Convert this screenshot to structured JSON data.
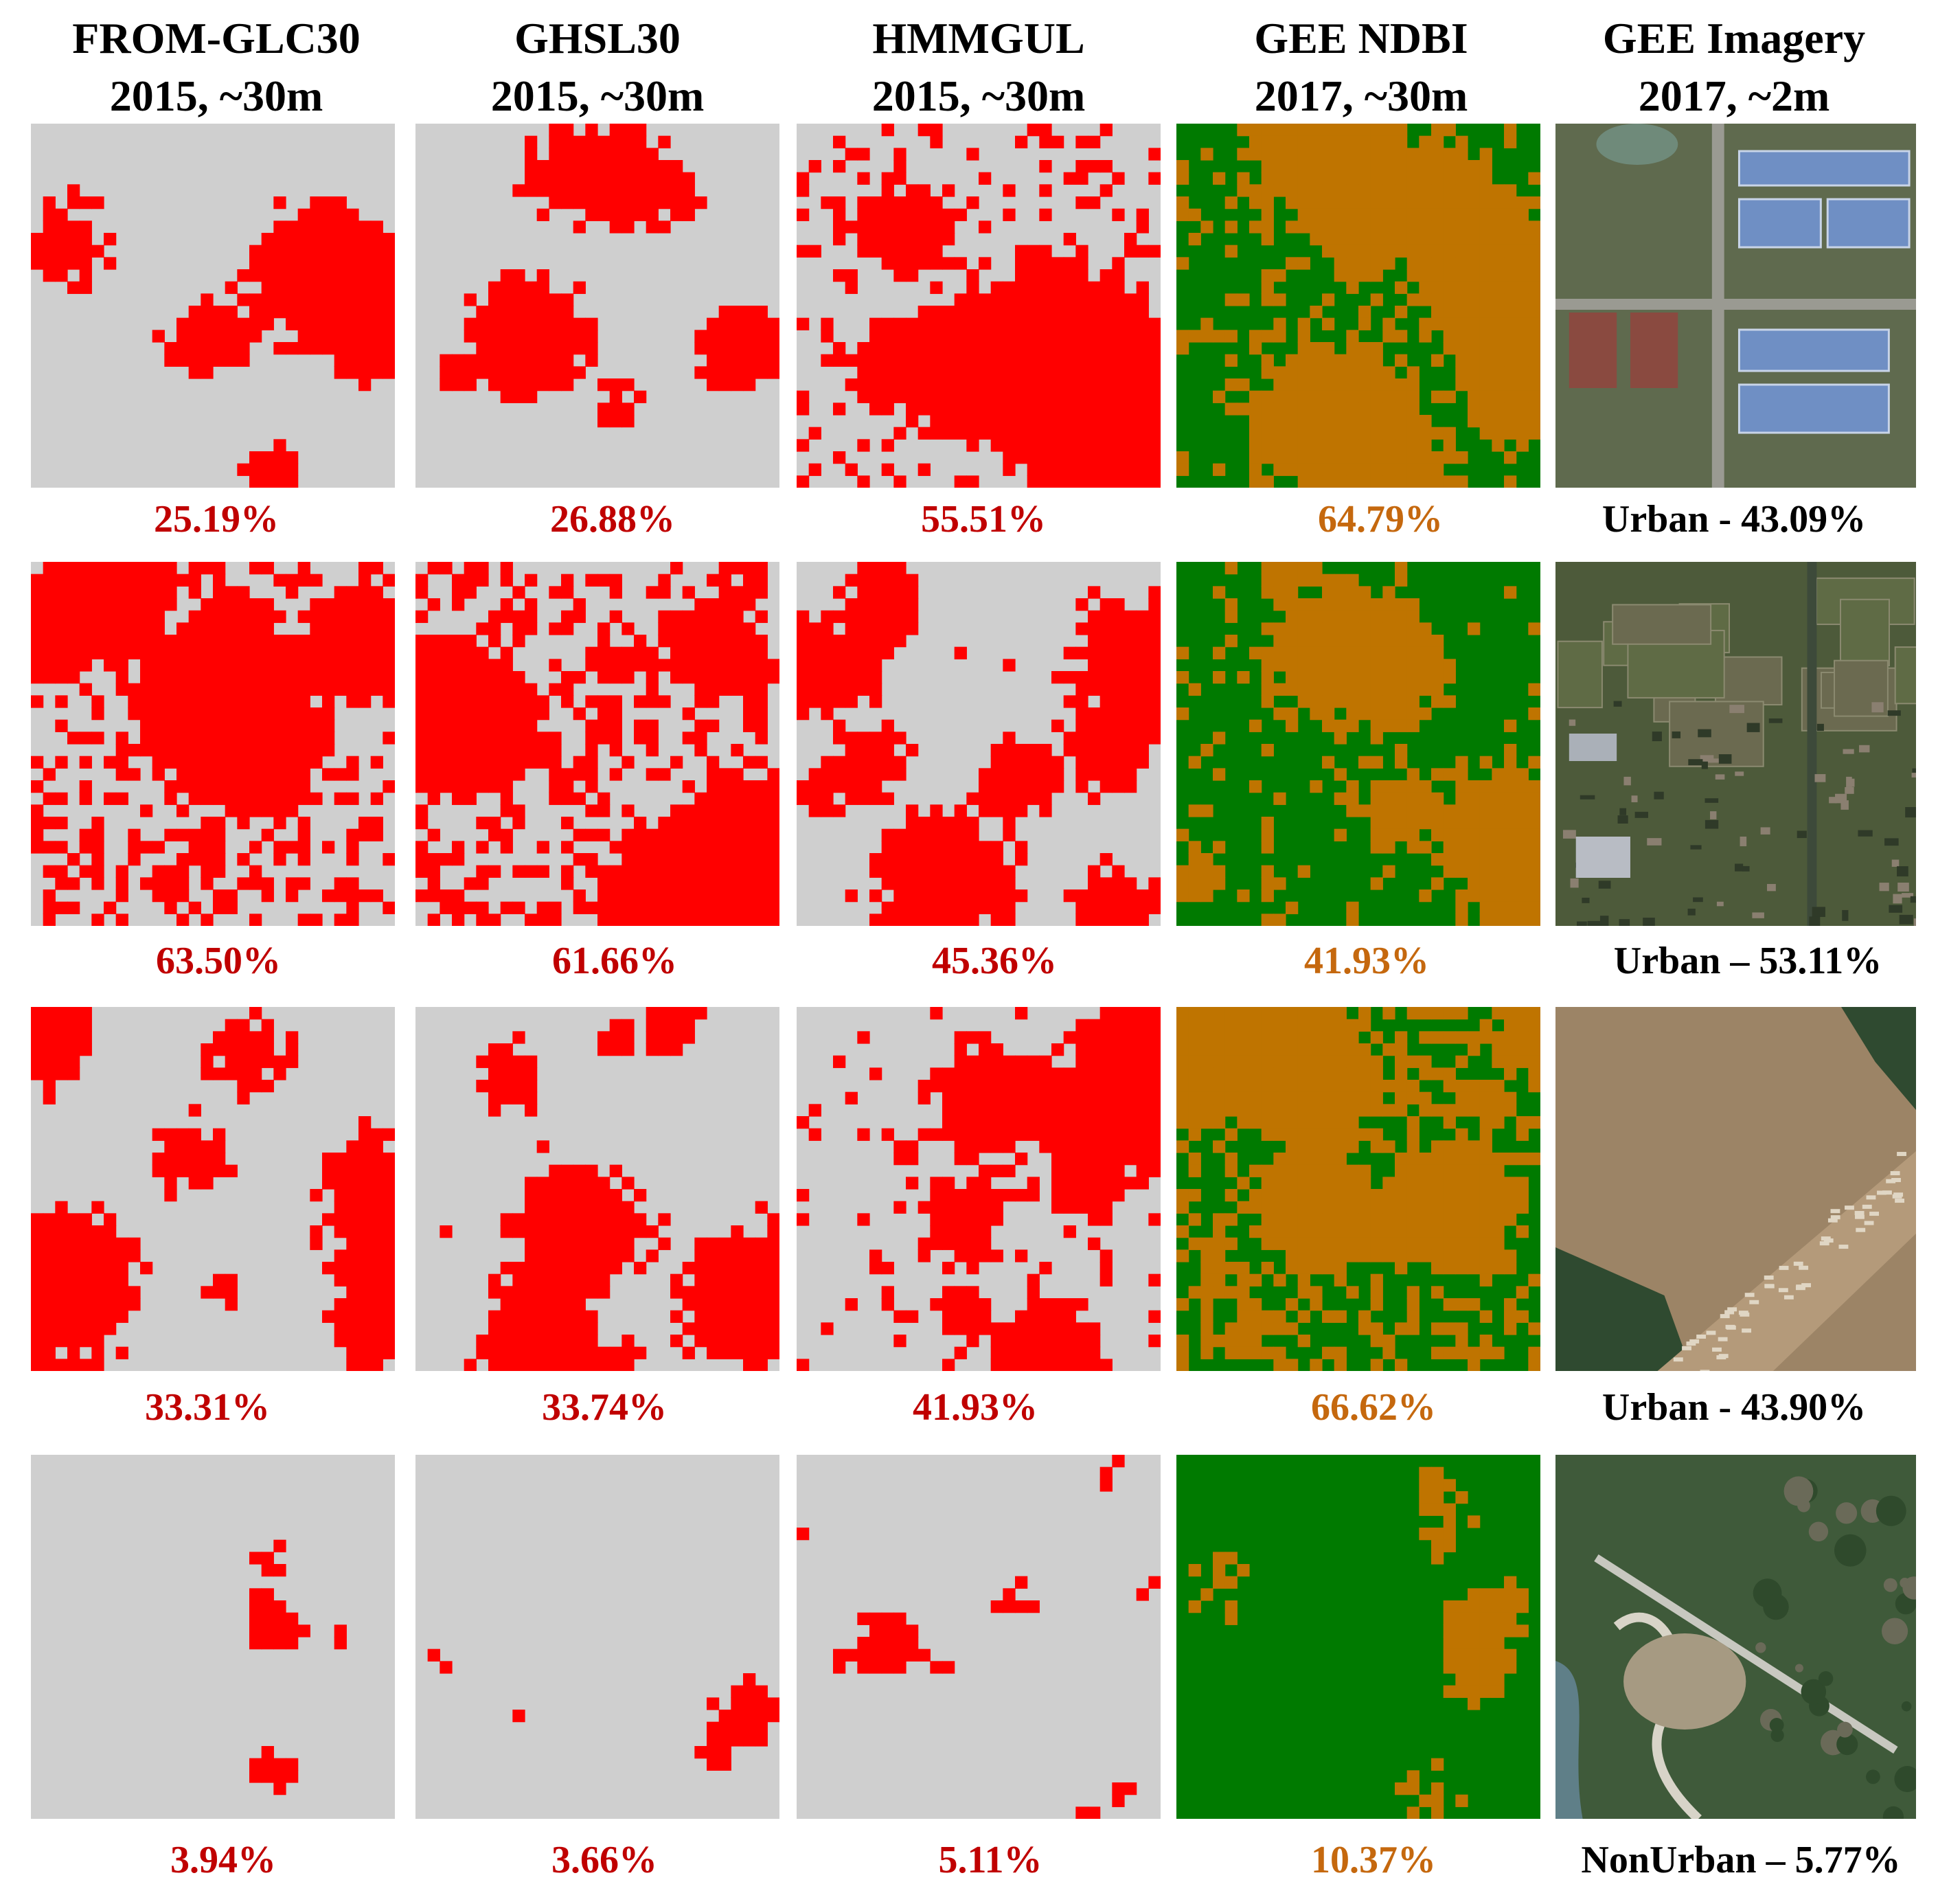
{
  "columns": [
    {
      "title": "FROM-GLC30",
      "subtitle": "2015, ~30m"
    },
    {
      "title": "GHSL30",
      "subtitle": "2015, ~30m"
    },
    {
      "title": "HMMGUL",
      "subtitle": "2015, ~30m"
    },
    {
      "title": "GEE NDBI",
      "subtitle": "2017, ~30m"
    },
    {
      "title": "GEE Imagery",
      "subtitle": "2017, ~2m"
    }
  ],
  "rows": [
    {
      "values": [
        "25.19%",
        "26.88%",
        "55.51%",
        "64.79%"
      ],
      "imagery_label": "Urban - 43.09%",
      "imagery_scene": "industrial-buildings"
    },
    {
      "values": [
        "63.50%",
        "61.66%",
        "45.36%",
        "41.93%"
      ],
      "imagery_label": "Urban – 53.11%",
      "imagery_scene": "village-farmland"
    },
    {
      "values": [
        "33.31%",
        "33.74%",
        "41.93%",
        "66.62%"
      ],
      "imagery_label": "Urban - 43.90%",
      "imagery_scene": "bare-land-housing"
    },
    {
      "values": [
        "3.94%",
        "3.66%",
        "5.11%",
        "10.37%"
      ],
      "imagery_label": "NonUrban – 5.77%",
      "imagery_scene": "hills-river-road"
    }
  ],
  "colors": {
    "urban_red": "#ff0000",
    "background_gray": "#cfcfcf",
    "ndbi_green": "#007a00",
    "ndbi_brown": "#bf7400",
    "label_red": "#c00000",
    "label_orange": "#c5680e",
    "label_black": "#000000"
  }
}
